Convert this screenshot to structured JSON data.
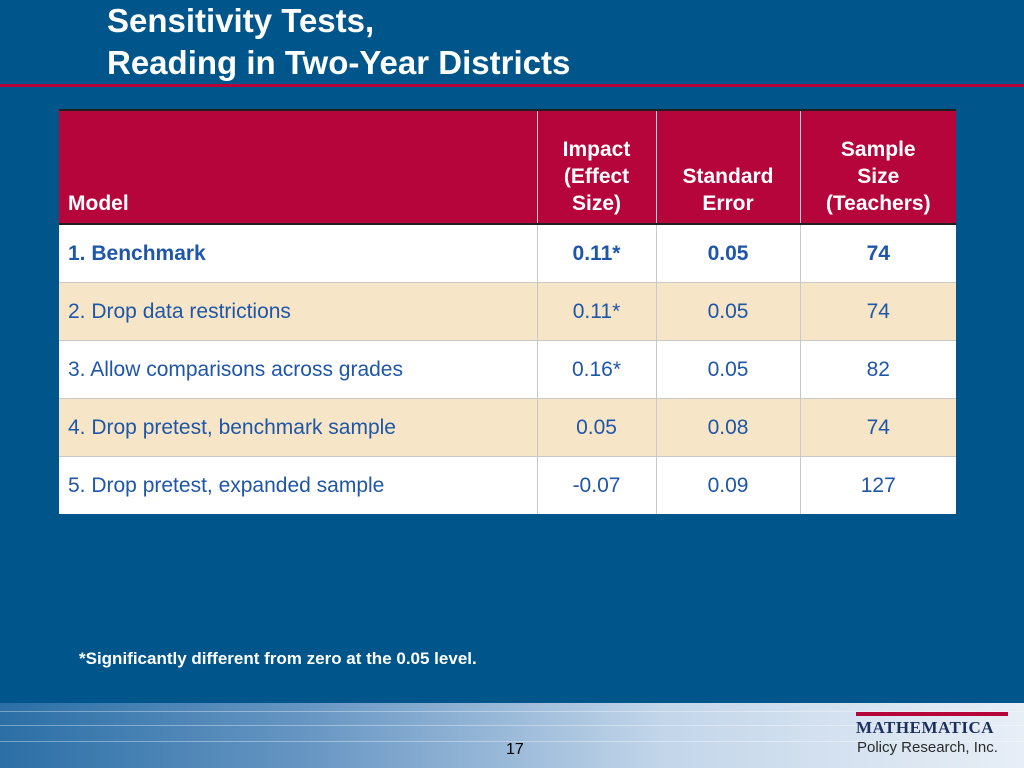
{
  "slide": {
    "title_line1": "Sensitivity Tests,",
    "title_line2": "Reading in Two-Year Districts",
    "footnote": "*Significantly different from zero at the 0.05 level.",
    "page_number": "17"
  },
  "table": {
    "headers": [
      "Model",
      "Impact\n(Effect\nSize)",
      "Standard\nError",
      "Sample\nSize\n(Teachers)"
    ],
    "rows": [
      {
        "model": "1. Benchmark",
        "impact": "0.11*",
        "se": "0.05",
        "n": "74"
      },
      {
        "model": "2. Drop data restrictions",
        "impact": "0.11*",
        "se": "0.05",
        "n": "74"
      },
      {
        "model": "3. Allow comparisons across grades",
        "impact": "0.16*",
        "se": "0.05",
        "n": "82"
      },
      {
        "model": "4. Drop pretest, benchmark sample",
        "impact": "0.05",
        "se": "0.08",
        "n": "74"
      },
      {
        "model": "5. Drop pretest, expanded sample",
        "impact": "-0.07",
        "se": "0.09",
        "n": "127"
      }
    ]
  },
  "logo": {
    "name": "MATHEMATICA",
    "subtitle": "Policy Research, Inc."
  },
  "colors": {
    "background": "#00568a",
    "header_fill": "#b5053b",
    "row_text": "#1f56a8",
    "alt_row_fill": "#f6e5c7"
  }
}
